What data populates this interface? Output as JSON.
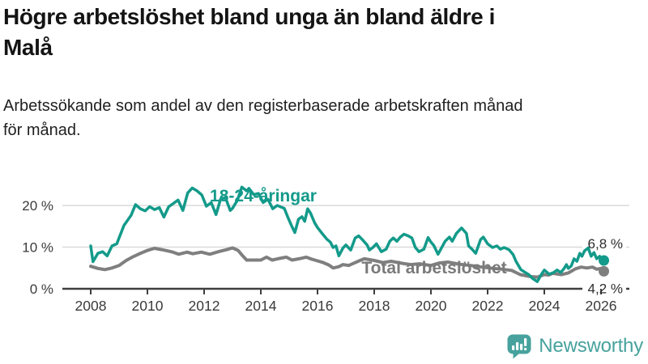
{
  "header": {
    "title": "Högre arbetslöshet bland unga än bland äldre i\nMalå",
    "subtitle": "Arbetssökande som andel av den registerbaserade arbetskraften månad\nför månad."
  },
  "footer": {
    "brand": "Newsworthy"
  },
  "colors": {
    "young": "#139a8a",
    "total": "#7f7f7f",
    "total_label": "#7a7a7a",
    "grid": "#dadada",
    "axis": "#3f3f3f",
    "tick_label": "#3a3a3a",
    "end_label": "#2e2e2e",
    "logo": "#47a29d"
  },
  "chart_data": {
    "type": "line",
    "title": "Högre arbetslöshet bland unga än bland äldre i Malå",
    "subtitle": "Arbetssökande som andel av den registerbaserade arbetskraften månad för månad.",
    "xlabel": "",
    "ylabel": "",
    "unit": "%",
    "grid": true,
    "x_ticks": [
      2008,
      2010,
      2012,
      2014,
      2016,
      2018,
      2020,
      2022,
      2024,
      2026
    ],
    "y_ticks": [
      {
        "value": 0,
        "label": "0 %"
      },
      {
        "value": 10,
        "label": "10 %"
      },
      {
        "value": 20,
        "label": "20 %"
      }
    ],
    "axis": {
      "x_domain": [
        2007,
        2027
      ],
      "y_domain": [
        0,
        20
      ],
      "ylim": [
        0,
        25
      ]
    },
    "series": [
      {
        "name": "18-24-åringar",
        "end_label": "6,8 %",
        "end_value": 6.8,
        "end_label_side": "above",
        "color_key": "young",
        "label_color_key": "young",
        "label_pos": {
          "x": 325,
          "y": 249
        },
        "points": [
          [
            2008.0,
            10.3
          ],
          [
            2008.08,
            6.5
          ],
          [
            2008.25,
            8.5
          ],
          [
            2008.42,
            8.9
          ],
          [
            2008.58,
            7.9
          ],
          [
            2008.75,
            10.3
          ],
          [
            2008.92,
            10.8
          ],
          [
            2009.17,
            15.2
          ],
          [
            2009.42,
            17.6
          ],
          [
            2009.58,
            20.2
          ],
          [
            2009.75,
            19.2
          ],
          [
            2009.92,
            18.7
          ],
          [
            2010.08,
            19.7
          ],
          [
            2010.25,
            19.0
          ],
          [
            2010.42,
            19.5
          ],
          [
            2010.58,
            17.2
          ],
          [
            2010.75,
            19.7
          ],
          [
            2010.92,
            20.5
          ],
          [
            2011.08,
            21.3
          ],
          [
            2011.25,
            18.8
          ],
          [
            2011.42,
            23.0
          ],
          [
            2011.58,
            24.2
          ],
          [
            2011.75,
            23.5
          ],
          [
            2011.92,
            22.5
          ],
          [
            2012.08,
            19.8
          ],
          [
            2012.25,
            20.7
          ],
          [
            2012.42,
            17.8
          ],
          [
            2012.58,
            21.5
          ],
          [
            2012.75,
            21.9
          ],
          [
            2012.92,
            18.8
          ],
          [
            2013.0,
            19.3
          ],
          [
            2013.17,
            21.2
          ],
          [
            2013.33,
            24.4
          ],
          [
            2013.5,
            23.5
          ],
          [
            2013.58,
            24.1
          ],
          [
            2013.75,
            22.6
          ],
          [
            2013.92,
            22.9
          ],
          [
            2014.08,
            20.7
          ],
          [
            2014.25,
            21.5
          ],
          [
            2014.42,
            19.2
          ],
          [
            2014.58,
            20.0
          ],
          [
            2014.83,
            19.3
          ],
          [
            2014.95,
            17.2
          ],
          [
            2015.08,
            15.2
          ],
          [
            2015.2,
            13.5
          ],
          [
            2015.33,
            16.7
          ],
          [
            2015.45,
            17.3
          ],
          [
            2015.55,
            16.2
          ],
          [
            2015.65,
            19.2
          ],
          [
            2015.75,
            18.2
          ],
          [
            2015.9,
            15.8
          ],
          [
            2016.0,
            14.7
          ],
          [
            2016.17,
            13.2
          ],
          [
            2016.33,
            11.9
          ],
          [
            2016.45,
            11.2
          ],
          [
            2016.55,
            9.9
          ],
          [
            2016.65,
            10.3
          ],
          [
            2016.75,
            7.9
          ],
          [
            2016.9,
            9.8
          ],
          [
            2017.0,
            10.5
          ],
          [
            2017.17,
            9.3
          ],
          [
            2017.33,
            12.2
          ],
          [
            2017.45,
            12.7
          ],
          [
            2017.58,
            11.8
          ],
          [
            2017.75,
            10.5
          ],
          [
            2017.83,
            9.3
          ],
          [
            2017.95,
            9.9
          ],
          [
            2018.08,
            10.8
          ],
          [
            2018.25,
            8.9
          ],
          [
            2018.42,
            9.5
          ],
          [
            2018.55,
            11.4
          ],
          [
            2018.67,
            12.2
          ],
          [
            2018.8,
            11.4
          ],
          [
            2018.92,
            12.4
          ],
          [
            2019.05,
            13.1
          ],
          [
            2019.2,
            12.7
          ],
          [
            2019.33,
            12.2
          ],
          [
            2019.45,
            9.9
          ],
          [
            2019.58,
            8.9
          ],
          [
            2019.75,
            9.5
          ],
          [
            2019.9,
            12.3
          ],
          [
            2020.0,
            11.2
          ],
          [
            2020.1,
            10.4
          ],
          [
            2020.25,
            8.3
          ],
          [
            2020.5,
            11.4
          ],
          [
            2020.65,
            12.4
          ],
          [
            2020.75,
            11.4
          ],
          [
            2020.9,
            13.3
          ],
          [
            2021.08,
            14.6
          ],
          [
            2021.25,
            13.3
          ],
          [
            2021.33,
            10.3
          ],
          [
            2021.45,
            9.5
          ],
          [
            2021.58,
            8.5
          ],
          [
            2021.75,
            11.8
          ],
          [
            2021.85,
            12.4
          ],
          [
            2022.0,
            10.8
          ],
          [
            2022.17,
            9.9
          ],
          [
            2022.33,
            10.3
          ],
          [
            2022.45,
            9.5
          ],
          [
            2022.58,
            9.9
          ],
          [
            2022.75,
            9.4
          ],
          [
            2022.9,
            8.2
          ],
          [
            2023.0,
            6.6
          ],
          [
            2023.17,
            4.6
          ],
          [
            2023.33,
            3.9
          ],
          [
            2023.45,
            3.4
          ],
          [
            2023.58,
            2.5
          ],
          [
            2023.75,
            1.7
          ],
          [
            2023.9,
            3.5
          ],
          [
            2024.0,
            4.5
          ],
          [
            2024.17,
            3.5
          ],
          [
            2024.33,
            3.9
          ],
          [
            2024.45,
            4.5
          ],
          [
            2024.58,
            3.9
          ],
          [
            2024.7,
            4.9
          ],
          [
            2024.78,
            5.8
          ],
          [
            2024.85,
            4.9
          ],
          [
            2024.95,
            5.5
          ],
          [
            2025.05,
            7.2
          ],
          [
            2025.15,
            6.6
          ],
          [
            2025.25,
            8.5
          ],
          [
            2025.33,
            7.8
          ],
          [
            2025.42,
            9.1
          ],
          [
            2025.55,
            9.8
          ],
          [
            2025.65,
            7.8
          ],
          [
            2025.75,
            8.7
          ],
          [
            2025.85,
            7.2
          ],
          [
            2025.95,
            7.8
          ],
          [
            2026.0,
            6.6
          ],
          [
            2026.05,
            5.9
          ],
          [
            2026.1,
            6.8
          ]
        ]
      },
      {
        "name": "Total arbetslöshet",
        "end_label": "4,2 %",
        "end_value": 4.2,
        "end_label_side": "below",
        "color_key": "total",
        "label_color_key": "total_label",
        "label_pos": {
          "x": 536,
          "y": 338
        },
        "points": [
          [
            2008.0,
            5.4
          ],
          [
            2008.25,
            4.9
          ],
          [
            2008.5,
            4.6
          ],
          [
            2008.75,
            5.0
          ],
          [
            2009.0,
            5.6
          ],
          [
            2009.25,
            6.8
          ],
          [
            2009.5,
            7.7
          ],
          [
            2009.75,
            8.5
          ],
          [
            2010.0,
            9.2
          ],
          [
            2010.25,
            9.7
          ],
          [
            2010.5,
            9.4
          ],
          [
            2010.7,
            9.1
          ],
          [
            2010.9,
            8.8
          ],
          [
            2011.1,
            8.3
          ],
          [
            2011.4,
            8.8
          ],
          [
            2011.6,
            8.4
          ],
          [
            2011.9,
            8.8
          ],
          [
            2012.2,
            8.3
          ],
          [
            2012.5,
            8.9
          ],
          [
            2012.8,
            9.4
          ],
          [
            2013.0,
            9.8
          ],
          [
            2013.2,
            9.2
          ],
          [
            2013.35,
            8.0
          ],
          [
            2013.5,
            6.9
          ],
          [
            2013.8,
            6.9
          ],
          [
            2014.0,
            6.9
          ],
          [
            2014.2,
            7.6
          ],
          [
            2014.4,
            6.9
          ],
          [
            2014.6,
            7.2
          ],
          [
            2014.9,
            7.6
          ],
          [
            2015.1,
            6.9
          ],
          [
            2015.35,
            7.2
          ],
          [
            2015.6,
            7.6
          ],
          [
            2015.75,
            7.2
          ],
          [
            2016.0,
            6.7
          ],
          [
            2016.2,
            6.3
          ],
          [
            2016.4,
            5.7
          ],
          [
            2016.55,
            5.0
          ],
          [
            2016.75,
            5.3
          ],
          [
            2016.9,
            5.8
          ],
          [
            2017.1,
            5.6
          ],
          [
            2017.3,
            6.2
          ],
          [
            2017.5,
            6.8
          ],
          [
            2017.65,
            7.2
          ],
          [
            2018.0,
            6.8
          ],
          [
            2018.3,
            6.3
          ],
          [
            2018.6,
            6.6
          ],
          [
            2019.0,
            6.1
          ],
          [
            2019.3,
            5.8
          ],
          [
            2019.6,
            6.0
          ],
          [
            2020.0,
            5.6
          ],
          [
            2020.3,
            6.2
          ],
          [
            2020.6,
            6.4
          ],
          [
            2021.0,
            5.9
          ],
          [
            2021.4,
            5.6
          ],
          [
            2021.8,
            5.2
          ],
          [
            2022.2,
            4.9
          ],
          [
            2022.5,
            4.7
          ],
          [
            2022.85,
            4.4
          ],
          [
            2023.15,
            3.4
          ],
          [
            2023.45,
            3.0
          ],
          [
            2023.75,
            2.8
          ],
          [
            2024.0,
            3.4
          ],
          [
            2024.15,
            3.3
          ],
          [
            2024.3,
            3.7
          ],
          [
            2024.6,
            3.4
          ],
          [
            2024.85,
            3.8
          ],
          [
            2025.1,
            4.8
          ],
          [
            2025.3,
            5.2
          ],
          [
            2025.5,
            5.0
          ],
          [
            2025.7,
            5.2
          ],
          [
            2025.85,
            4.7
          ],
          [
            2026.0,
            4.9
          ],
          [
            2026.1,
            4.2
          ]
        ]
      }
    ]
  }
}
